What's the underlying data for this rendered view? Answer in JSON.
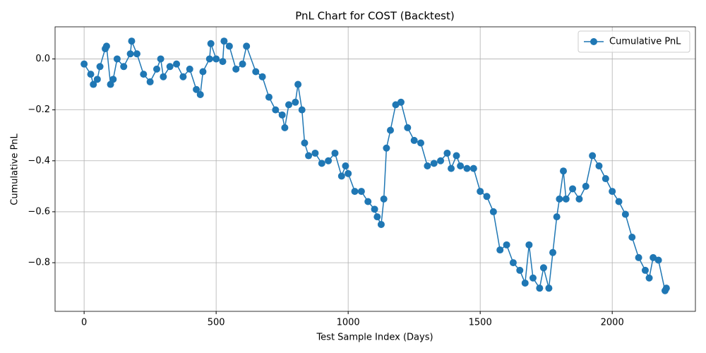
{
  "chart_data": {
    "type": "line",
    "title": "PnL Chart for COST (Backtest)",
    "xlabel": "Test Sample Index (Days)",
    "ylabel": "Cumulative PnL",
    "x": [
      0,
      25,
      35,
      50,
      60,
      80,
      85,
      100,
      110,
      125,
      150,
      175,
      180,
      200,
      225,
      250,
      275,
      290,
      300,
      325,
      350,
      375,
      400,
      425,
      440,
      450,
      475,
      480,
      500,
      525,
      530,
      550,
      575,
      600,
      615,
      650,
      675,
      700,
      725,
      750,
      760,
      775,
      800,
      810,
      825,
      835,
      850,
      875,
      900,
      925,
      950,
      975,
      990,
      1000,
      1025,
      1050,
      1075,
      1100,
      1110,
      1125,
      1135,
      1145,
      1160,
      1180,
      1200,
      1225,
      1250,
      1275,
      1300,
      1325,
      1350,
      1375,
      1390,
      1410,
      1425,
      1450,
      1475,
      1500,
      1525,
      1550,
      1575,
      1600,
      1625,
      1650,
      1670,
      1685,
      1700,
      1725,
      1740,
      1760,
      1775,
      1790,
      1800,
      1815,
      1825,
      1850,
      1875,
      1900,
      1925,
      1950,
      1975,
      2000,
      2025,
      2050,
      2075,
      2100,
      2125,
      2140,
      2155,
      2175,
      2200,
      2205
    ],
    "series": [
      {
        "name": "Cumulative PnL",
        "color": "#1f77b4",
        "values": [
          -0.02,
          -0.06,
          -0.1,
          -0.08,
          -0.03,
          0.04,
          0.05,
          -0.1,
          -0.08,
          0.0,
          -0.03,
          0.02,
          0.07,
          0.02,
          -0.06,
          -0.09,
          -0.04,
          0.0,
          -0.07,
          -0.03,
          -0.02,
          -0.07,
          -0.04,
          -0.12,
          -0.14,
          -0.05,
          0.0,
          0.06,
          0.0,
          -0.01,
          0.07,
          0.05,
          -0.04,
          -0.02,
          0.05,
          -0.05,
          -0.07,
          -0.15,
          -0.2,
          -0.22,
          -0.27,
          -0.18,
          -0.17,
          -0.1,
          -0.2,
          -0.33,
          -0.38,
          -0.37,
          -0.41,
          -0.4,
          -0.37,
          -0.46,
          -0.42,
          -0.45,
          -0.52,
          -0.52,
          -0.56,
          -0.59,
          -0.62,
          -0.65,
          -0.55,
          -0.35,
          -0.28,
          -0.18,
          -0.17,
          -0.27,
          -0.32,
          -0.33,
          -0.42,
          -0.41,
          -0.4,
          -0.37,
          -0.43,
          -0.38,
          -0.42,
          -0.43,
          -0.43,
          -0.52,
          -0.54,
          -0.6,
          -0.75,
          -0.73,
          -0.8,
          -0.83,
          -0.88,
          -0.73,
          -0.86,
          -0.9,
          -0.82,
          -0.9,
          -0.76,
          -0.62,
          -0.55,
          -0.44,
          -0.55,
          -0.51,
          -0.55,
          -0.5,
          -0.38,
          -0.42,
          -0.47,
          -0.52,
          -0.56,
          -0.61,
          -0.7,
          -0.78,
          -0.83,
          -0.86,
          -0.78,
          -0.79,
          -0.91,
          -0.9
        ]
      }
    ],
    "xlim": [
      -110,
      2315
    ],
    "ylim": [
      -0.991,
      0.126
    ],
    "xticks": [
      0,
      500,
      1000,
      1500,
      2000
    ],
    "yticks": [
      {
        "value": 0,
        "label": "0.0"
      },
      {
        "value": -0.2,
        "label": "−0.2"
      },
      {
        "value": -0.4,
        "label": "−0.4"
      },
      {
        "value": -0.6,
        "label": "−0.6"
      },
      {
        "value": -0.8,
        "label": "−0.8"
      }
    ],
    "grid": true,
    "legend": "upper right"
  }
}
